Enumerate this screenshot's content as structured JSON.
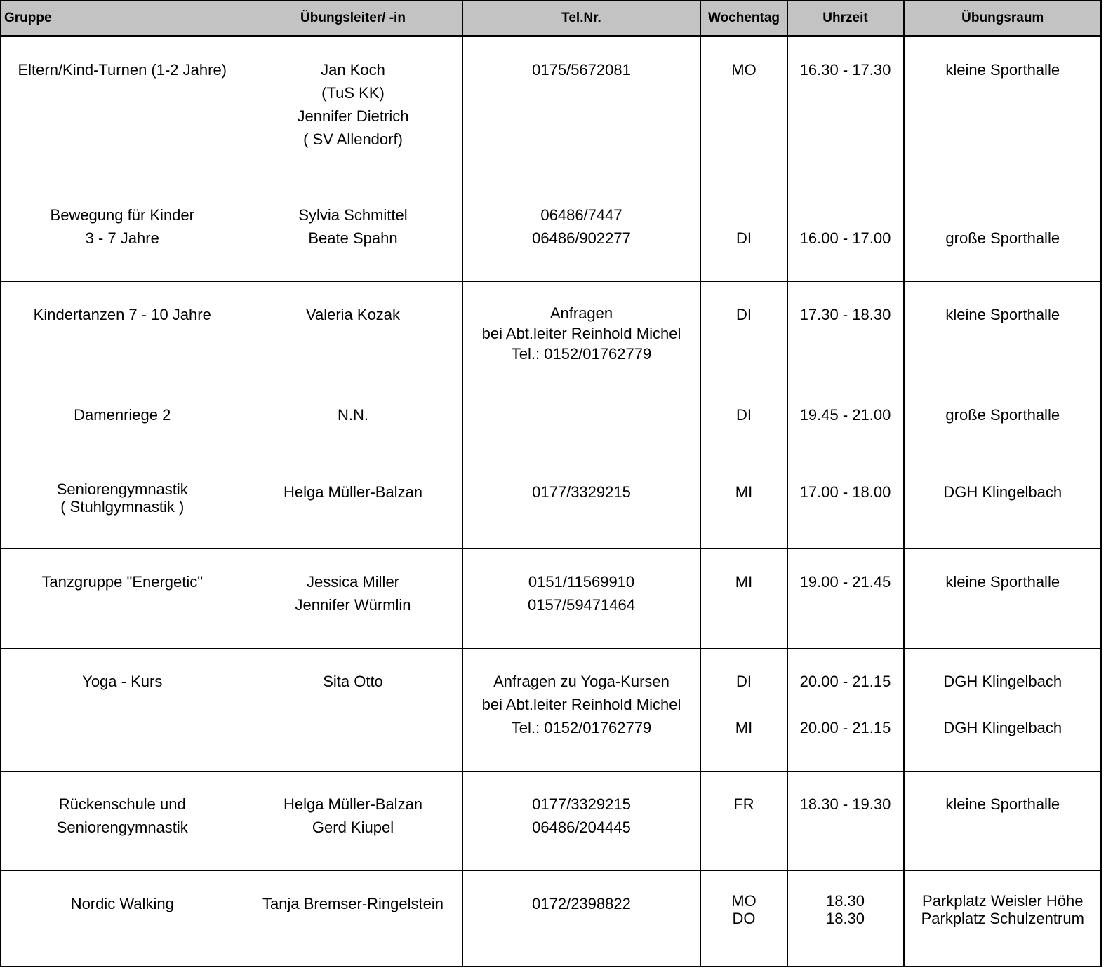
{
  "headers": [
    "Gruppe",
    "Übungsleiter/ -in",
    "Tel.Nr.",
    "Wochentag",
    "Uhrzeit",
    "Übungsraum"
  ],
  "rows": [
    {
      "cells": [
        [
          "Eltern/Kind-Turnen (1-2 Jahre)"
        ],
        [
          "Jan Koch",
          "(TuS KK)",
          "Jennifer Dietrich",
          "( SV Allendorf)"
        ],
        [
          "0175/5672081"
        ],
        [
          "MO"
        ],
        [
          "16.30 - 17.30"
        ],
        [
          "kleine Sporthalle"
        ]
      ]
    },
    {
      "cells": [
        [
          "Bewegung für Kinder",
          "3 - 7 Jahre"
        ],
        [
          "Sylvia Schmittel",
          "Beate Spahn"
        ],
        [
          "06486/7447",
          "06486/902277"
        ],
        [
          "",
          "DI"
        ],
        [
          "",
          "16.00 - 17.00"
        ],
        [
          "",
          "große Sporthalle"
        ]
      ]
    },
    {
      "cells": [
        [
          "Kindertanzen 7 - 10 Jahre"
        ],
        [
          "Valeria Kozak"
        ],
        [
          "Anfragen",
          "bei Abt.leiter Reinhold Michel",
          "Tel.: 0152/01762779"
        ],
        [
          "DI"
        ],
        [
          "17.30 - 18.30"
        ],
        [
          "kleine Sporthalle"
        ]
      ]
    },
    {
      "cells": [
        [
          "Damenriege 2"
        ],
        [
          "N.N."
        ],
        [],
        [
          "DI"
        ],
        [
          "19.45 - 21.00"
        ],
        [
          "große Sporthalle"
        ]
      ]
    },
    {
      "cells": [
        [
          "Seniorengymnastik",
          "( Stuhlgymnastik )"
        ],
        [
          "Helga Müller-Balzan"
        ],
        [
          "0177/3329215"
        ],
        [
          "MI"
        ],
        [
          "17.00 - 18.00"
        ],
        [
          "DGH Klingelbach"
        ]
      ]
    },
    {
      "cells": [
        [
          "Tanzgruppe \"Energetic\""
        ],
        [
          "Jessica Miller",
          "Jennifer Würmlin"
        ],
        [
          "0151/11569910",
          "0157/59471464"
        ],
        [
          "MI"
        ],
        [
          "19.00 - 21.45"
        ],
        [
          "kleine Sporthalle"
        ]
      ]
    },
    {
      "cells": [
        [
          "Yoga - Kurs"
        ],
        [
          "Sita Otto"
        ],
        [
          "Anfragen zu Yoga-Kursen",
          "bei Abt.leiter Reinhold Michel",
          "Tel.: 0152/01762779"
        ],
        [
          "DI",
          "",
          "MI"
        ],
        [
          "20.00 - 21.15",
          "",
          "20.00 - 21.15"
        ],
        [
          "DGH Klingelbach",
          "",
          "DGH Klingelbach"
        ]
      ]
    },
    {
      "cells": [
        [
          "Rückenschule und",
          "Seniorengymnastik"
        ],
        [
          "Helga Müller-Balzan",
          "Gerd Kiupel"
        ],
        [
          "0177/3329215",
          "06486/204445"
        ],
        [
          "FR"
        ],
        [
          "18.30 - 19.30"
        ],
        [
          "kleine Sporthalle"
        ]
      ]
    },
    {
      "cells": [
        [
          "Nordic Walking"
        ],
        [
          "Tanja Bremser-Ringelstein"
        ],
        [
          "0172/2398822"
        ],
        [
          "MO",
          "DO"
        ],
        [
          "18.30",
          "18.30"
        ],
        [
          "Parkplatz Weisler Höhe",
          "Parkplatz Schulzentrum"
        ]
      ]
    }
  ],
  "colors": {
    "header_bg": "#c3c3c3",
    "border": "#000000"
  }
}
